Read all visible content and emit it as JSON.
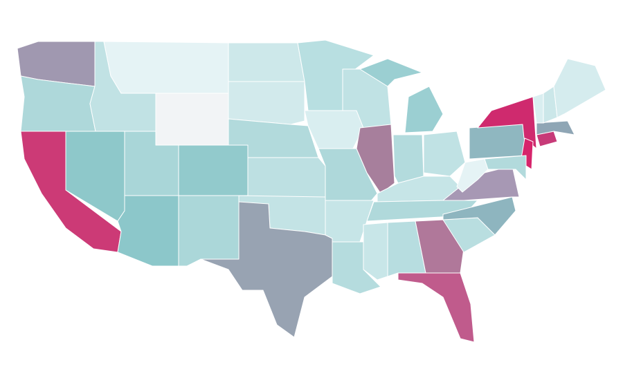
{
  "map": {
    "type": "choropleth",
    "regions": [
      {
        "color": "#a098b0"
      },
      {
        "color": "#aed8da"
      },
      {
        "color": "#cc3a76"
      },
      {
        "color": "#8ec8ca"
      },
      {
        "color": "#c1e2e4"
      },
      {
        "color": "#e5f3f5"
      },
      {
        "color": "#f2f4f6"
      },
      {
        "color": "#a9d6d8"
      },
      {
        "color": "#8cc7ca"
      },
      {
        "color": "#92cacc"
      },
      {
        "color": "#abd7d9"
      },
      {
        "color": "#cde8ea"
      },
      {
        "color": "#d2eaec"
      },
      {
        "color": "#b2dadc"
      },
      {
        "color": "#bde0e2"
      },
      {
        "color": "#c3e3e5"
      },
      {
        "color": "#98a3b2"
      },
      {
        "color": "#b8dfe1"
      },
      {
        "color": "#d9eef0"
      },
      {
        "color": "#aed8da"
      },
      {
        "color": "#c6e5e7"
      },
      {
        "color": "#b5dcde"
      },
      {
        "color": "#c0e2e4"
      },
      {
        "color": "#a77f9c"
      },
      {
        "color": "#9bcfd2"
      },
      {
        "color": "#b3dbdd"
      },
      {
        "color": "#c0e2e4"
      },
      {
        "color": "#c6e5e7"
      },
      {
        "color": "#b0d9db"
      },
      {
        "color": "#c8e6e8"
      },
      {
        "color": "#b7dde0"
      },
      {
        "color": "#b0789a"
      },
      {
        "color": "#c05b8c"
      },
      {
        "color": "#b9dee0"
      },
      {
        "color": "#8eb5bf"
      },
      {
        "color": "#a798b4"
      },
      {
        "color": "#e5f3f5"
      },
      {
        "color": "#8fb7c0"
      },
      {
        "color": "#cf2a6e"
      },
      {
        "color": "#d6246b"
      },
      {
        "color": "#b2dadc"
      },
      {
        "color": "#c73a78"
      },
      {
        "color": "#8fa6b5"
      },
      {
        "color": "#d9eef0"
      },
      {
        "color": "#cbe7e9"
      },
      {
        "color": "#d5ecee"
      }
    ]
  }
}
